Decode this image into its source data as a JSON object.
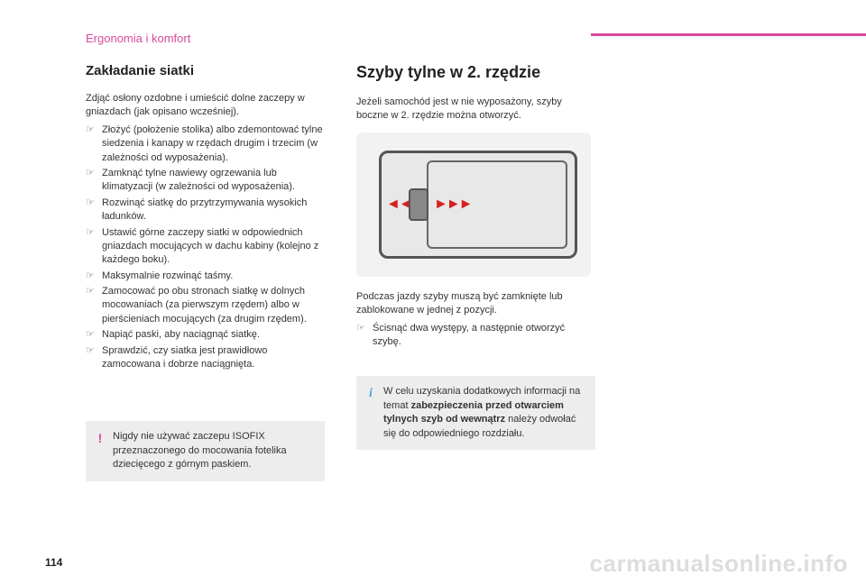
{
  "header": {
    "section": "Ergonomia i komfort"
  },
  "left": {
    "title": "Zakładanie siatki",
    "intro": "Zdjąć osłony ozdobne i umieścić dolne zaczepy w gniazdach (jak opisano wcześniej).",
    "bullets": [
      "Złożyć (położenie stolika) albo zdemontować tylne siedzenia i kanapy w rzędach drugim i trzecim (w zależności od wyposażenia).",
      "Zamknąć tylne nawiewy ogrzewania lub klimatyzacji (w zależności od wyposażenia).",
      "Rozwinąć siatkę do przytrzymywania wysokich ładunków.",
      "Ustawić górne zaczepy siatki w odpowiednich gniazdach mocujących w dachu kabiny (kolejno z każdego boku).",
      "Maksymalnie rozwinąć taśmy.",
      "Zamocować po obu stronach siatkę w dolnych mocowaniach (za pierwszym rzędem) albo w pierścieniach mocujących (za drugim rzędem).",
      "Napiąć paski, aby naciągnąć siatkę.",
      "Sprawdzić, czy siatka jest prawidłowo zamocowana i dobrze naciągnięta."
    ],
    "warning": "Nigdy nie używać zaczepu ISOFIX przeznaczonego do mocowania fotelika dziecięcego z górnym paskiem."
  },
  "right": {
    "title": "Szyby tylne w 2. rzędzie",
    "intro": "Jeżeli samochód jest w nie wyposażony, szyby boczne w 2. rzędzie można otworzyć.",
    "body": "Podczas jazdy szyby muszą być zamknięte lub zablokowane w jednej z pozycji.",
    "bullets": [
      "Ścisnąć dwa występy, a następnie otworzyć szybę."
    ],
    "info_pre": "W celu uzyskania dodatkowych informacji na temat ",
    "info_bold": "zabezpieczenia przed otwarciem tylnych szyb od wewnątrz",
    "info_post": " należy odwołać się do odpowiedniego rozdziału."
  },
  "page_number": "114",
  "watermark": "carmanualsonline.info",
  "colors": {
    "accent": "#d94a9e",
    "info_icon": "#4aa3d9",
    "arrow": "#d62020",
    "callout_bg": "#ededed",
    "text": "#333333"
  }
}
